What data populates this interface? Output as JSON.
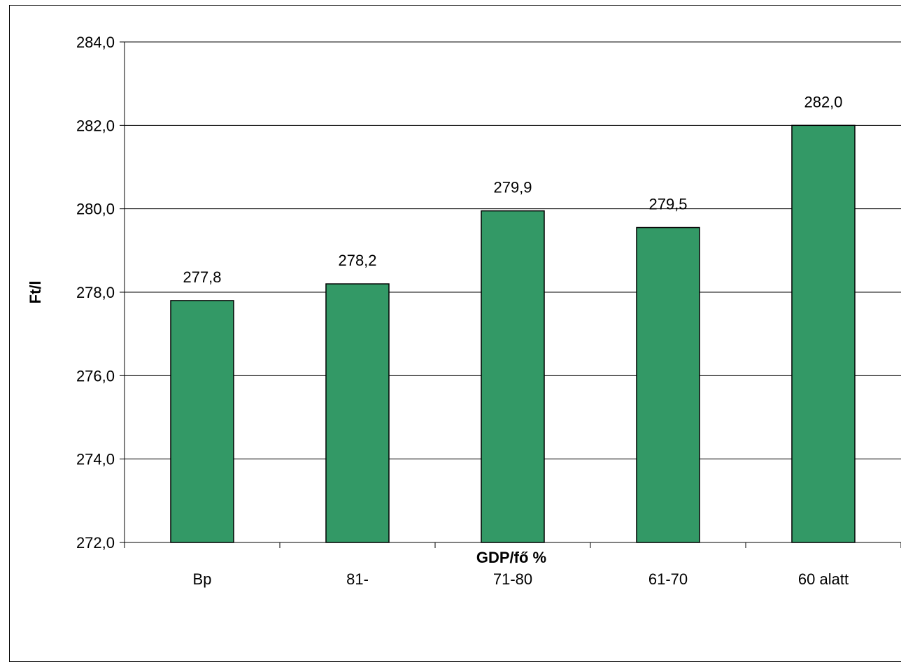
{
  "chart_data": {
    "type": "bar",
    "categories": [
      "Bp",
      "81-",
      "71-80",
      "61-70",
      "60 alatt"
    ],
    "values": [
      277.8,
      278.2,
      279.95,
      279.55,
      282.0
    ],
    "value_labels": [
      "277,8",
      "278,2",
      "279,9",
      "279,5",
      "282,0"
    ],
    "y_ticks": [
      272.0,
      274.0,
      276.0,
      278.0,
      280.0,
      282.0,
      284.0
    ],
    "y_tick_labels": [
      "272,0",
      "274,0",
      "276,0",
      "278,0",
      "280,0",
      "282,0",
      "284,0"
    ],
    "title": "",
    "xlabel": "GDP/fő %",
    "ylabel": "Ft/l",
    "ylim": [
      272,
      284
    ],
    "grid": true,
    "legend": "none",
    "bar_color": "#339966"
  }
}
